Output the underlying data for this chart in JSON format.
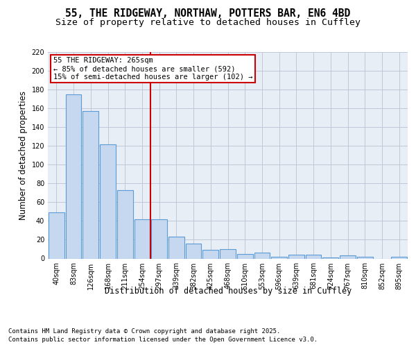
{
  "title_line1": "55, THE RIDGEWAY, NORTHAW, POTTERS BAR, EN6 4BD",
  "title_line2": "Size of property relative to detached houses in Cuffley",
  "xlabel": "Distribution of detached houses by size in Cuffley",
  "ylabel": "Number of detached properties",
  "categories": [
    "40sqm",
    "83sqm",
    "126sqm",
    "168sqm",
    "211sqm",
    "254sqm",
    "297sqm",
    "339sqm",
    "382sqm",
    "425sqm",
    "468sqm",
    "510sqm",
    "553sqm",
    "596sqm",
    "639sqm",
    "681sqm",
    "724sqm",
    "767sqm",
    "810sqm",
    "852sqm",
    "895sqm"
  ],
  "values": [
    49,
    175,
    157,
    122,
    73,
    42,
    42,
    23,
    16,
    9,
    10,
    5,
    6,
    2,
    4,
    4,
    1,
    3,
    2,
    0,
    2
  ],
  "bar_color": "#c5d8f0",
  "bar_edge_color": "#5b9bd5",
  "bar_edge_width": 0.8,
  "grid_color": "#c0c8d8",
  "background_color": "#e8eef5",
  "vline_x_index": 5,
  "vline_color": "#cc0000",
  "annotation_text": "55 THE RIDGEWAY: 265sqm\n← 85% of detached houses are smaller (592)\n15% of semi-detached houses are larger (102) →",
  "annotation_box_color": "white",
  "annotation_box_edge": "#cc0000",
  "ylim": [
    0,
    220
  ],
  "yticks": [
    0,
    20,
    40,
    60,
    80,
    100,
    120,
    140,
    160,
    180,
    200,
    220
  ],
  "footer_line1": "Contains HM Land Registry data © Crown copyright and database right 2025.",
  "footer_line2": "Contains public sector information licensed under the Open Government Licence v3.0.",
  "title_fontsize": 10.5,
  "subtitle_fontsize": 9.5,
  "tick_fontsize": 7,
  "label_fontsize": 8.5,
  "footer_fontsize": 6.5,
  "annotation_fontsize": 7.5
}
